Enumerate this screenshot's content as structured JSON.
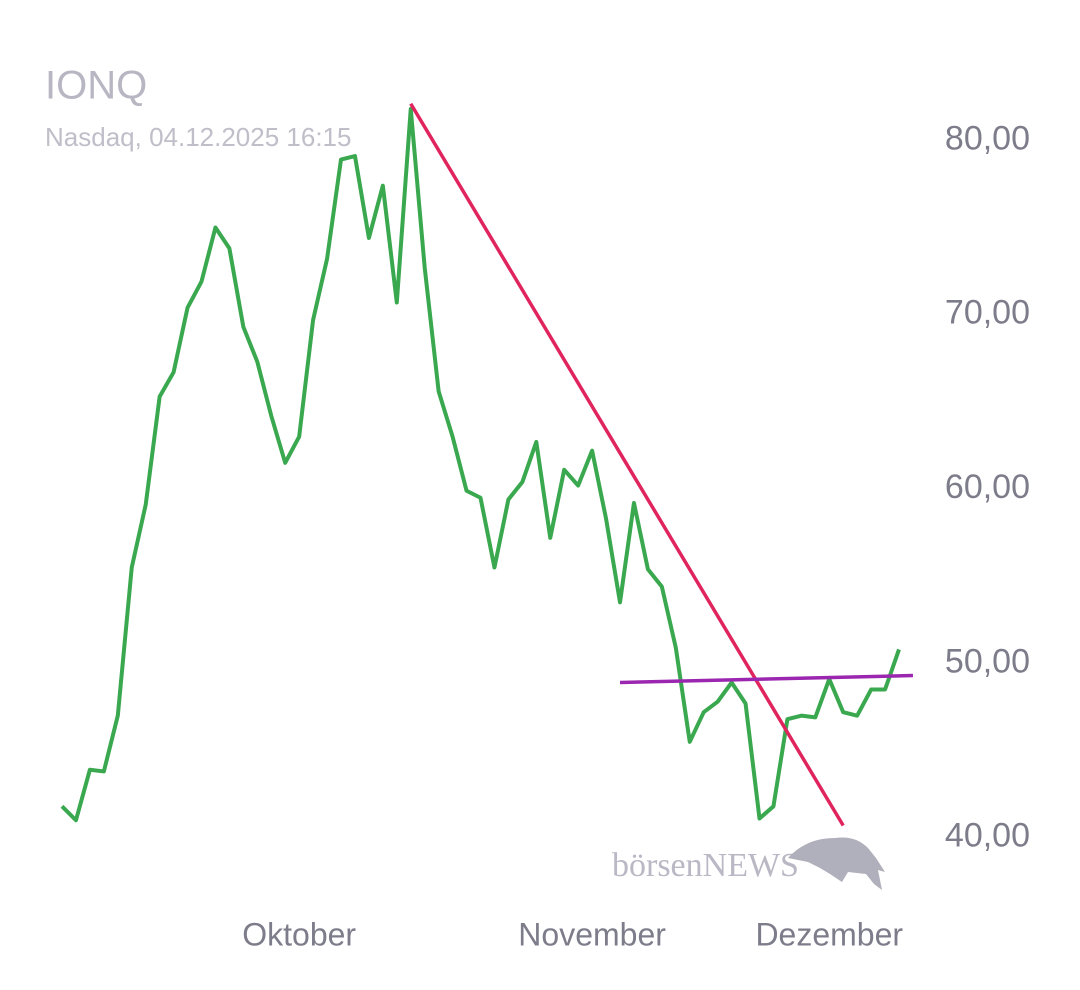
{
  "chart_data": {
    "type": "line",
    "title": "IONQ",
    "subtitle": "Nasdaq, 04.12.2025 16:15",
    "watermark": "börsenNEWS",
    "categories": [
      null,
      null,
      null,
      null,
      null,
      null,
      null,
      null,
      null,
      null,
      null,
      null,
      null,
      null,
      null,
      null,
      null,
      "Oktober",
      null,
      null,
      null,
      null,
      null,
      null,
      null,
      null,
      null,
      null,
      null,
      null,
      null,
      null,
      null,
      null,
      null,
      null,
      null,
      null,
      "November",
      null,
      null,
      null,
      null,
      null,
      null,
      null,
      null,
      null,
      null,
      null,
      null,
      null,
      null,
      null,
      null,
      "Dezember",
      null,
      null,
      null,
      null,
      null
    ],
    "series": [
      {
        "color": "#3aa84f",
        "values": [
          41.8,
          41.0,
          43.9,
          43.8,
          47.0,
          55.5,
          59.1,
          65.3,
          66.7,
          70.4,
          71.9,
          75.0,
          73.8,
          69.3,
          67.3,
          64.2,
          61.5,
          63.0,
          69.7,
          73.2,
          78.9,
          79.1,
          74.4,
          77.4,
          70.7,
          81.8,
          72.7,
          65.6,
          63.0,
          59.9,
          59.5,
          55.5,
          59.4,
          60.4,
          62.7,
          57.2,
          61.1,
          60.2,
          62.2,
          58.3,
          53.5,
          59.2,
          55.4,
          54.4,
          50.9,
          45.5,
          47.2,
          47.8,
          48.9,
          47.7,
          41.1,
          41.8,
          46.8,
          47.0,
          46.9,
          49.1,
          47.2,
          47.0,
          48.5,
          48.5,
          50.8
        ]
      }
    ],
    "trendlines": [
      {
        "color": "#e0245e",
        "start": {
          "index": 25,
          "value": 82.1
        },
        "end": {
          "index": 56,
          "value": 40.7
        }
      },
      {
        "color": "#9b27b0",
        "start": {
          "index": 40,
          "value": 48.9
        },
        "end": {
          "index": 61,
          "value": 49.3
        }
      }
    ],
    "ylim": [
      37,
      82.6
    ],
    "yticks": [
      {
        "value": 40,
        "label": "40,00"
      },
      {
        "value": 50,
        "label": "50,00"
      },
      {
        "value": 60,
        "label": "60,00"
      },
      {
        "value": 70,
        "label": "70,00"
      },
      {
        "value": 80,
        "label": "80,00"
      }
    ],
    "grid": false
  }
}
